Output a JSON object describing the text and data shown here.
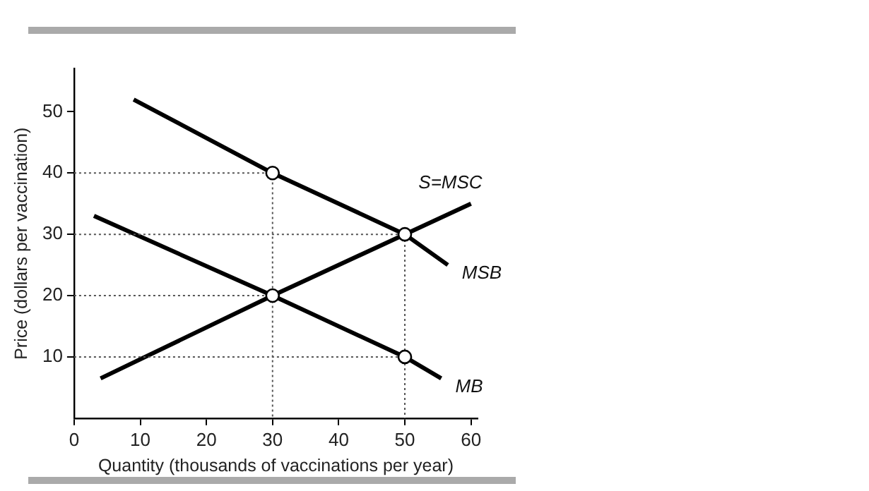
{
  "chart_data": {
    "type": "line",
    "xlabel": "Quantity (thousands of vaccinations per year)",
    "ylabel": "Price (dollars per vaccination)",
    "xlim": [
      0,
      61
    ],
    "ylim": [
      0,
      57
    ],
    "xticks": [
      0,
      10,
      20,
      30,
      40,
      50,
      60
    ],
    "yticks": [
      10,
      20,
      30,
      40,
      50
    ],
    "grid": false,
    "legend": false,
    "series": [
      {
        "line_style": "dotted",
        "color": "#555555",
        "x": [
          0,
          30,
          30
        ],
        "values": [
          40,
          40,
          0
        ],
        "marker": "none"
      },
      {
        "line_style": "dotted",
        "color": "#555555",
        "x": [
          0,
          50,
          50
        ],
        "values": [
          30,
          30,
          0
        ],
        "marker": "none"
      },
      {
        "line_style": "dotted",
        "color": "#555555",
        "x": [
          0,
          30
        ],
        "values": [
          20,
          20
        ],
        "marker": "none"
      },
      {
        "line_style": "dotted",
        "color": "#555555",
        "x": [
          0,
          50
        ],
        "values": [
          10,
          10
        ],
        "marker": "none"
      },
      {
        "name": "MSB",
        "color": "#000000",
        "line_style": "solid",
        "marker": "none",
        "x": [
          9,
          30,
          50,
          56.5
        ],
        "values": [
          52,
          40,
          30,
          25
        ]
      },
      {
        "name": "MB",
        "color": "#000000",
        "line_style": "solid",
        "marker": "none",
        "x": [
          3,
          30,
          50,
          55.5
        ],
        "values": [
          33,
          20,
          10,
          6.5
        ]
      },
      {
        "name": "S=MSC",
        "color": "#000000",
        "line_style": "solid",
        "marker": "none",
        "x": [
          4,
          30,
          50,
          60
        ],
        "values": [
          6.5,
          20,
          30,
          35
        ]
      },
      {
        "type": "scatter",
        "color": "#000000",
        "marker": "circle",
        "x": [
          30,
          50,
          30,
          50
        ],
        "values": [
          40,
          30,
          20,
          10
        ]
      }
    ]
  }
}
